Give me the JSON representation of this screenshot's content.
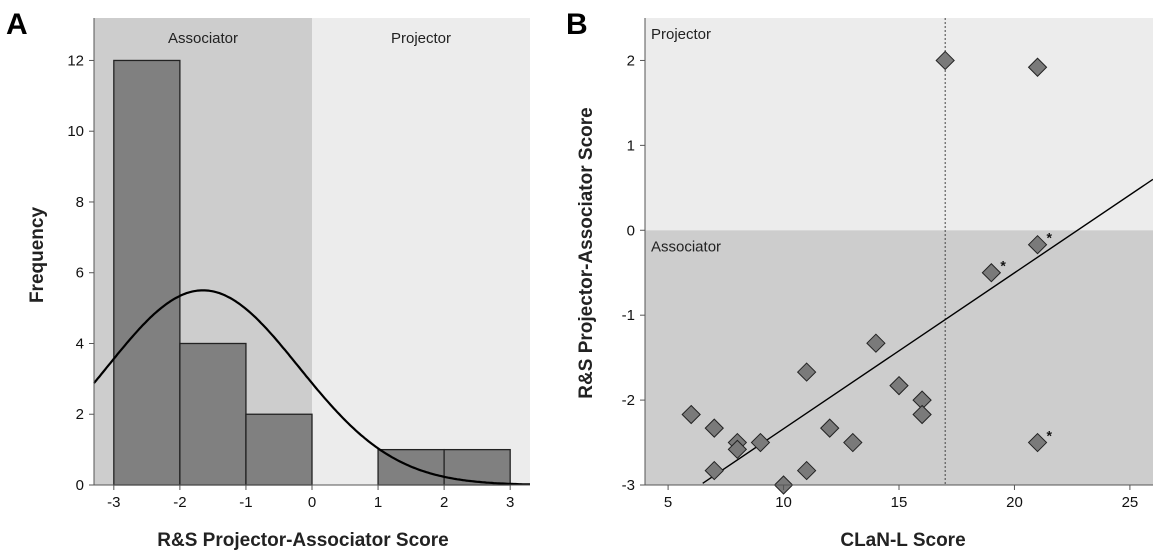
{
  "colors": {
    "associator_region": "#cdcdcd",
    "projector_region": "#ececec",
    "bar_fill": "#808080",
    "point_fill": "#7a7a7a",
    "line": "#000000"
  },
  "chart_data": [
    {
      "panel": "A",
      "type": "bar",
      "subtype": "histogram-with-normal-curve",
      "xlabel": "R&S Projector-Associator Score",
      "ylabel": "Frequency",
      "xlim": [
        -3.3,
        3.3
      ],
      "ylim": [
        0,
        13.2
      ],
      "x_ticks": [
        -3,
        -2,
        -1,
        0,
        1,
        2,
        3
      ],
      "y_ticks": [
        0,
        2,
        4,
        6,
        8,
        10,
        12
      ],
      "bins": [
        {
          "from": -3,
          "to": -2,
          "count": 12
        },
        {
          "from": -2,
          "to": -1,
          "count": 4
        },
        {
          "from": -1,
          "to": 0,
          "count": 2
        },
        {
          "from": 1,
          "to": 2,
          "count": 1
        },
        {
          "from": 2,
          "to": 3,
          "count": 1
        }
      ],
      "normal_curve": {
        "mean": -1.65,
        "sd": 1.45,
        "n": 20,
        "bin_width": 1
      },
      "regions": [
        {
          "label": "Associator",
          "from": -3.3,
          "to": 0
        },
        {
          "label": "Projector",
          "from": 0,
          "to": 3.3
        }
      ],
      "grid": false
    },
    {
      "panel": "B",
      "type": "scatter",
      "xlabel": "CLaN-L Score",
      "ylabel": "R&S Projector-Associator Score",
      "xlim": [
        4,
        26
      ],
      "ylim": [
        -3,
        2.5
      ],
      "x_ticks": [
        5,
        10,
        15,
        20,
        25
      ],
      "y_ticks": [
        -3,
        -2,
        -1,
        0,
        1,
        2
      ],
      "points": [
        {
          "x": 6,
          "y": -2.17
        },
        {
          "x": 7,
          "y": -2.33
        },
        {
          "x": 7,
          "y": -2.83
        },
        {
          "x": 8,
          "y": -2.5
        },
        {
          "x": 8,
          "y": -2.58
        },
        {
          "x": 9,
          "y": -2.5
        },
        {
          "x": 10,
          "y": -3.0
        },
        {
          "x": 11,
          "y": -1.67
        },
        {
          "x": 11,
          "y": -2.83
        },
        {
          "x": 12,
          "y": -2.33
        },
        {
          "x": 13,
          "y": -2.5
        },
        {
          "x": 14,
          "y": -1.33
        },
        {
          "x": 15,
          "y": -1.83
        },
        {
          "x": 16,
          "y": -2.0
        },
        {
          "x": 16,
          "y": -2.17
        },
        {
          "x": 17,
          "y": 2.0
        },
        {
          "x": 19,
          "y": -0.5,
          "marker": "*"
        },
        {
          "x": 21,
          "y": 1.92
        },
        {
          "x": 21,
          "y": -0.17,
          "marker": "*"
        },
        {
          "x": 21,
          "y": -2.5,
          "marker": "*"
        }
      ],
      "regression_line": {
        "x0": 6.5,
        "y0": -2.98,
        "x1": 26,
        "y1": 0.6
      },
      "reference_line_x": 17,
      "regions": [
        {
          "label": "Projector",
          "from": 0,
          "to": 2.5
        },
        {
          "label": "Associator",
          "from": -3,
          "to": 0
        }
      ],
      "grid": false
    }
  ]
}
